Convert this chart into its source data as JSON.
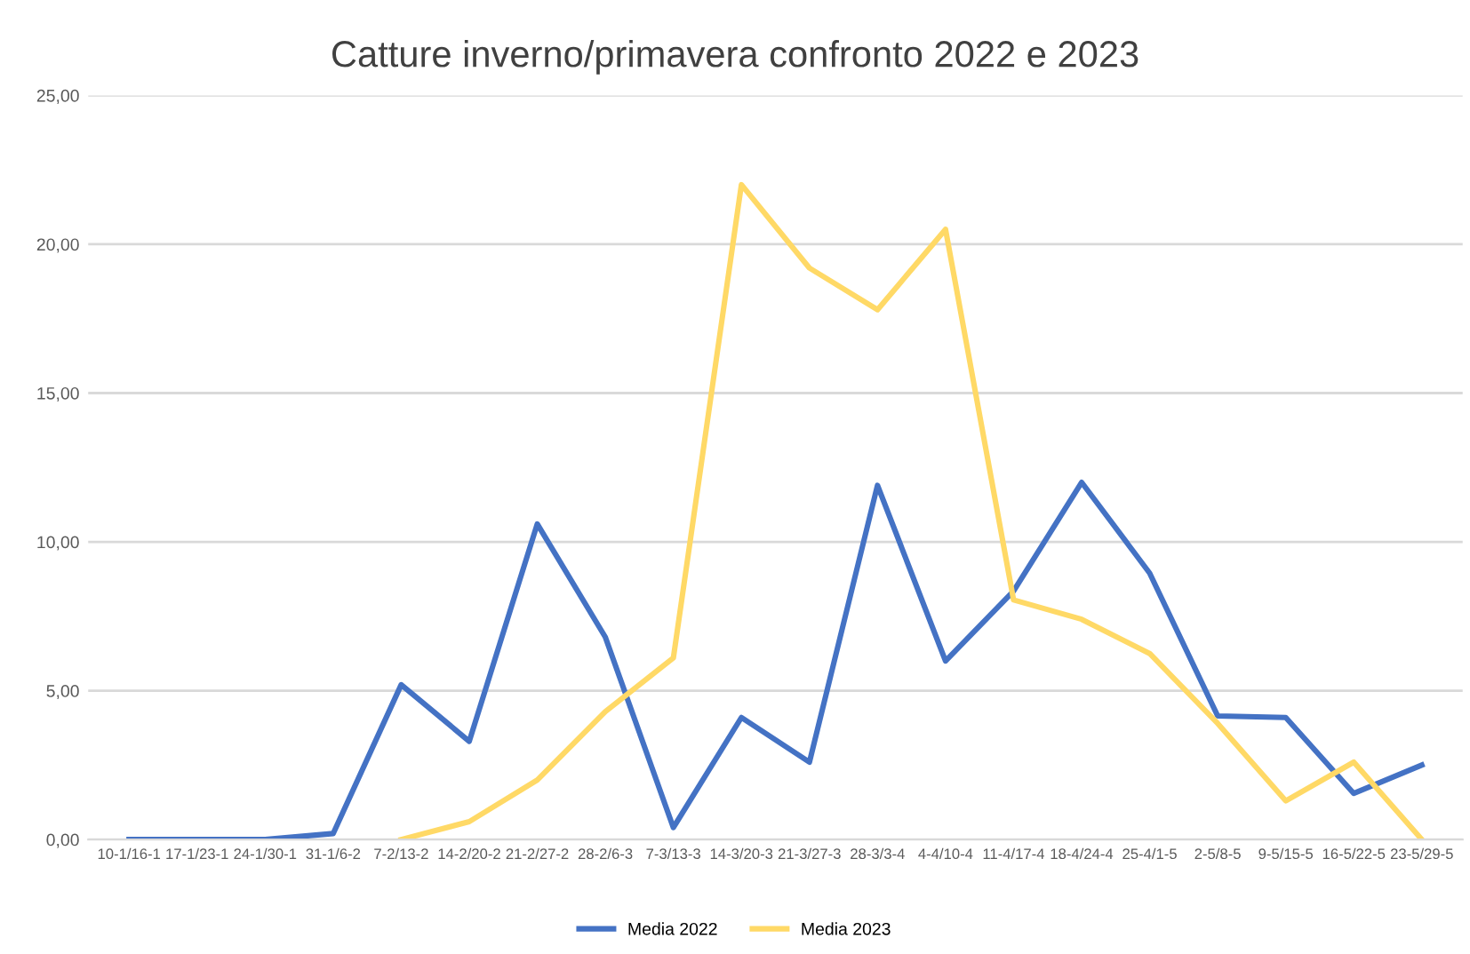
{
  "chart_data": {
    "type": "line",
    "title": "Catture inverno/primavera confronto 2022 e 2023",
    "categories": [
      "10-1/16-1",
      "17-1/23-1",
      "24-1/30-1",
      "31-1/6-2",
      "7-2/13-2",
      "14-2/20-2",
      "21-2/27-2",
      "28-2/6-3",
      "7-3/13-3",
      "14-3/20-3",
      "21-3/27-3",
      "28-3/3-4",
      "4-4/10-4",
      "11-4/17-4",
      "18-4/24-4",
      "25-4/1-5",
      "2-5/8-5",
      "9-5/15-5",
      "16-5/22-5",
      "23-5/29-5"
    ],
    "series": [
      {
        "name": "Media 2022",
        "color": "#4472c4",
        "values": [
          0,
          0,
          0,
          0.2,
          5.2,
          3.3,
          10.6,
          6.8,
          0.4,
          4.1,
          2.6,
          11.9,
          6.0,
          8.35,
          12.0,
          8.95,
          4.15,
          4.1,
          1.55,
          2.5
        ]
      },
      {
        "name": "Media 2023",
        "color": "#ffd966",
        "values": [
          null,
          null,
          null,
          null,
          0,
          0.6,
          2.0,
          4.3,
          6.1,
          22.0,
          19.2,
          17.8,
          20.5,
          8.05,
          7.4,
          6.25,
          3.9,
          1.3,
          2.6,
          0
        ]
      }
    ],
    "ylim": [
      0,
      25
    ],
    "yticks": [
      {
        "value": 0,
        "label": "0,00"
      },
      {
        "value": 5,
        "label": "5,00"
      },
      {
        "value": 10,
        "label": "10,00"
      },
      {
        "value": 15,
        "label": "15,00"
      },
      {
        "value": 20,
        "label": "20,00"
      },
      {
        "value": 25,
        "label": "25,00"
      }
    ],
    "grid": "y",
    "legend": "bottom",
    "marker": "none",
    "line_style": "solid"
  }
}
